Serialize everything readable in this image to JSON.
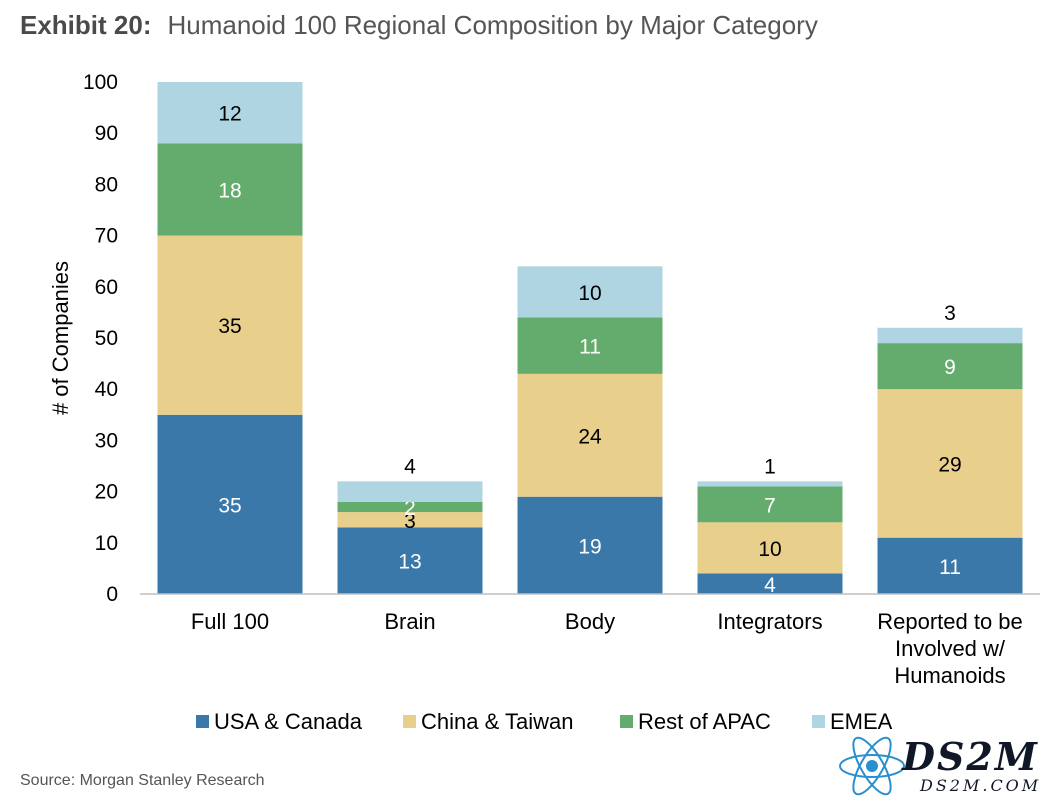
{
  "header": {
    "exhibit_label": "Exhibit 20:",
    "title": "Humanoid 100 Regional Composition by Major Category"
  },
  "chart_data": {
    "type": "bar",
    "stacked": true,
    "categories": [
      "Full 100",
      "Brain",
      "Body",
      "Integrators",
      "Reported to be Involved w/ Humanoids"
    ],
    "category_lines": [
      [
        "Full 100"
      ],
      [
        "Brain"
      ],
      [
        "Body"
      ],
      [
        "Integrators"
      ],
      [
        "Reported to be",
        "Involved w/",
        "Humanoids"
      ]
    ],
    "series": [
      {
        "name": "USA & Canada",
        "color": "#3a78aa",
        "label_color": "#ffffff",
        "values": [
          35,
          13,
          19,
          4,
          11
        ]
      },
      {
        "name": "China & Taiwan",
        "color": "#e8cf8c",
        "label_color": "#000000",
        "values": [
          35,
          3,
          24,
          10,
          29
        ]
      },
      {
        "name": "Rest of APAC",
        "color": "#64ac6e",
        "label_color": "#ffffff",
        "values": [
          18,
          2,
          11,
          7,
          9
        ]
      },
      {
        "name": "EMEA",
        "color": "#aed5e1",
        "label_color": "#000000",
        "values": [
          12,
          4,
          10,
          1,
          3
        ]
      }
    ],
    "ylabel": "# of Companies",
    "ylim": [
      0,
      100
    ],
    "yticks": [
      0,
      10,
      20,
      30,
      40,
      50,
      60,
      70,
      80,
      90,
      100
    ],
    "grid": false,
    "legend": "bottom"
  },
  "source": "Source: Morgan Stanley Research",
  "watermark": {
    "main": "DS2M",
    "sub": "DS2M.COM"
  }
}
